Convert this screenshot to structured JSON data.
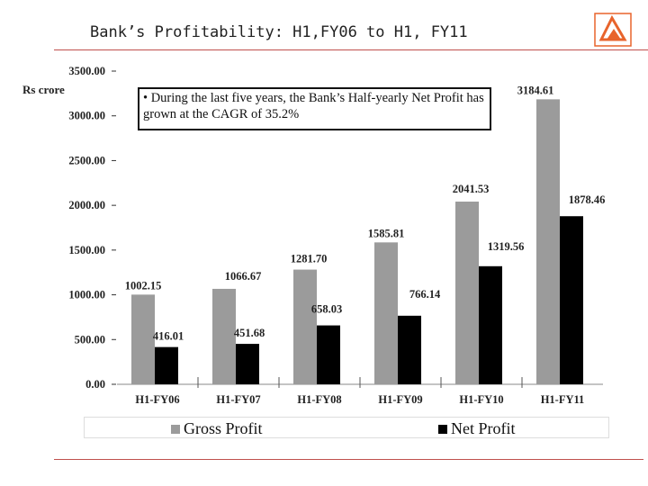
{
  "header": {
    "title": "Bank’s Profitability: H1,FY06 to H1, FY11",
    "rule_color": "#c0504d"
  },
  "logo": {
    "name": "bank-of-baroda-logo",
    "color": "#e8642c"
  },
  "callout": {
    "text": "• During the last five years, the Bank’s Half-yearly Net Profit has grown at the CAGR of 35.2%"
  },
  "chart_data": {
    "type": "bar",
    "ylabel": "Rs crore",
    "ylim": [
      0,
      3500
    ],
    "yticks": [
      0,
      500,
      1000,
      1500,
      2000,
      2500,
      3000,
      3500
    ],
    "ytick_labels": [
      "0.00",
      "500.00",
      "1000.00",
      "1500.00",
      "2000.00",
      "2500.00",
      "3000.00",
      "3500.00"
    ],
    "categories": [
      "H1-FY06",
      "H1-FY07",
      "H1-FY08",
      "H1-FY09",
      "H1-FY10",
      "H1-FY11"
    ],
    "series": [
      {
        "name": "Gross Profit",
        "color": "#9b9b9b",
        "values": [
          1002.15,
          1066.67,
          1281.7,
          1585.81,
          2041.53,
          3184.61
        ],
        "labels": [
          "1002.15",
          "1066.67",
          "1281.70",
          "1585.81",
          "2041.53",
          "3184.61"
        ]
      },
      {
        "name": "Net Profit",
        "color": "#000000",
        "values": [
          416.01,
          451.68,
          658.03,
          766.14,
          1319.56,
          1878.46
        ],
        "labels": [
          "416.01",
          "451.68",
          "658.03",
          "766.14",
          "1319.56",
          "1878.46"
        ]
      }
    ],
    "grid": false,
    "legend": "bottom"
  }
}
